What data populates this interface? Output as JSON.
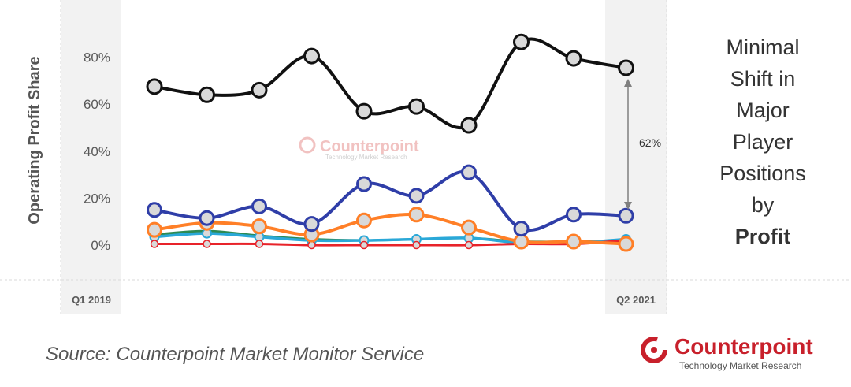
{
  "chart_data": {
    "type": "line",
    "ylabel": "Operating Profit Share",
    "xlabel": "",
    "ylim": [
      -15,
      95
    ],
    "y_ticks": [
      "0%",
      "20%",
      "40%",
      "60%",
      "80%"
    ],
    "x_tick_labels": [
      "Q1 2019",
      "Q2 2021"
    ],
    "grid": false,
    "annotation": "62%",
    "watermark": "Counterpoint",
    "watermark_tagline": "Technology Market Research",
    "series": [
      {
        "color": "#111111",
        "values": [
          67.5,
          64,
          66,
          80.5,
          57,
          59,
          51,
          86.5,
          79.5,
          75.5
        ]
      },
      {
        "color": "#2f3ea8",
        "values": [
          15,
          11.5,
          16.5,
          9,
          26,
          21,
          31,
          7,
          13,
          12.5
        ]
      },
      {
        "color": "#ff7f27",
        "values": [
          6.5,
          9.5,
          8,
          4.5,
          10.5,
          13,
          7.5,
          1.5,
          1.5,
          0.5
        ]
      },
      {
        "color": "#2aa8d8",
        "values": [
          3.5,
          5,
          3.5,
          2,
          2,
          2.5,
          3,
          1,
          1,
          2.5
        ]
      },
      {
        "color": "#2c8a53",
        "values": [
          4.5,
          6,
          4,
          2.5,
          2,
          2.5,
          3,
          1.5,
          1.5,
          2
        ]
      },
      {
        "color": "#e8232a",
        "values": [
          0.5,
          0.5,
          0.5,
          0,
          0,
          0,
          0,
          0.5,
          0.5,
          2
        ]
      }
    ]
  },
  "note": {
    "lines": [
      "Minimal",
      "Shift in",
      "Major",
      "Player",
      "Positions",
      "by"
    ],
    "bold_line": "Profit"
  },
  "source": "Source: Counterpoint Market Monitor Service",
  "brand": {
    "name": "Counterpoint",
    "tagline": "Technology Market Research"
  }
}
